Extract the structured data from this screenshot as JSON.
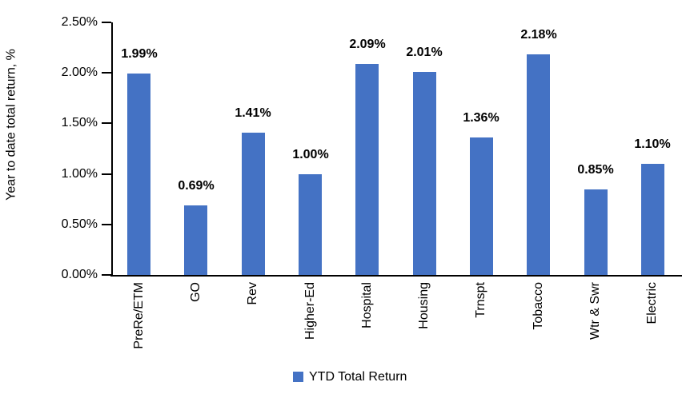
{
  "chart_data": {
    "type": "bar",
    "title": "",
    "ylabel": "Year to date total return, %",
    "xlabel": "",
    "categories": [
      "PreRe/ETM",
      "GO",
      "Rev",
      "Higher-Ed",
      "Hospital",
      "Housing",
      "Trnspt",
      "Tobacco",
      "Wtr & Swr",
      "Electric"
    ],
    "values": [
      1.99,
      0.69,
      1.41,
      1.0,
      2.09,
      2.01,
      1.36,
      2.18,
      0.85,
      1.1
    ],
    "data_labels": [
      "1.99%",
      "0.69%",
      "1.41%",
      "1.00%",
      "2.09%",
      "2.01%",
      "1.36%",
      "2.18%",
      "0.85%",
      "1.10%"
    ],
    "ylim": [
      0,
      2.5
    ],
    "ytick_step": 0.5,
    "ytick_labels": [
      "0.00%",
      "0.50%",
      "1.00%",
      "1.50%",
      "2.00%",
      "2.50%"
    ],
    "grid": false,
    "legend_position": "bottom",
    "legend": {
      "entries": [
        {
          "label": "YTD Total Return",
          "color": "#4472C4"
        }
      ]
    },
    "bar_color": "#4472C4",
    "axis_color": "#000000",
    "text_color": "#000000",
    "background_color": "#FFFFFF"
  }
}
